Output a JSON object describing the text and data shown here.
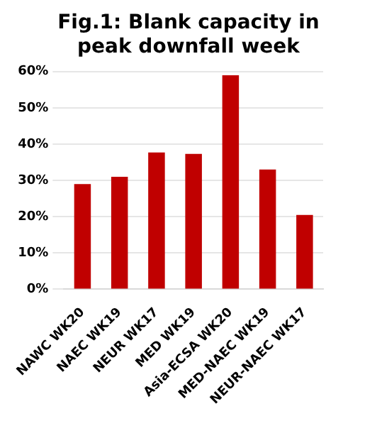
{
  "chart_data": {
    "type": "bar",
    "title": "Fig.1: Blank capacity in peak downfall week",
    "categories": [
      "NAWC WK20",
      "NAEC WK19",
      "NEUR WK17",
      "MED WK19",
      "Asia-ECSA WK20",
      "MED-NAEC WK19",
      "NEUR-NAEC WK17"
    ],
    "values": [
      29,
      31,
      37.7,
      37.3,
      59,
      33,
      20.5
    ],
    "color": "#c00000",
    "ylim": [
      0,
      60
    ],
    "yticks": [
      {
        "value": 0,
        "label": "0%"
      },
      {
        "value": 10,
        "label": "10%"
      },
      {
        "value": 20,
        "label": "20%"
      },
      {
        "value": 30,
        "label": "30%"
      },
      {
        "value": 40,
        "label": "40%"
      },
      {
        "value": 50,
        "label": "50%"
      },
      {
        "value": 60,
        "label": "60%"
      }
    ],
    "grid": "y"
  }
}
